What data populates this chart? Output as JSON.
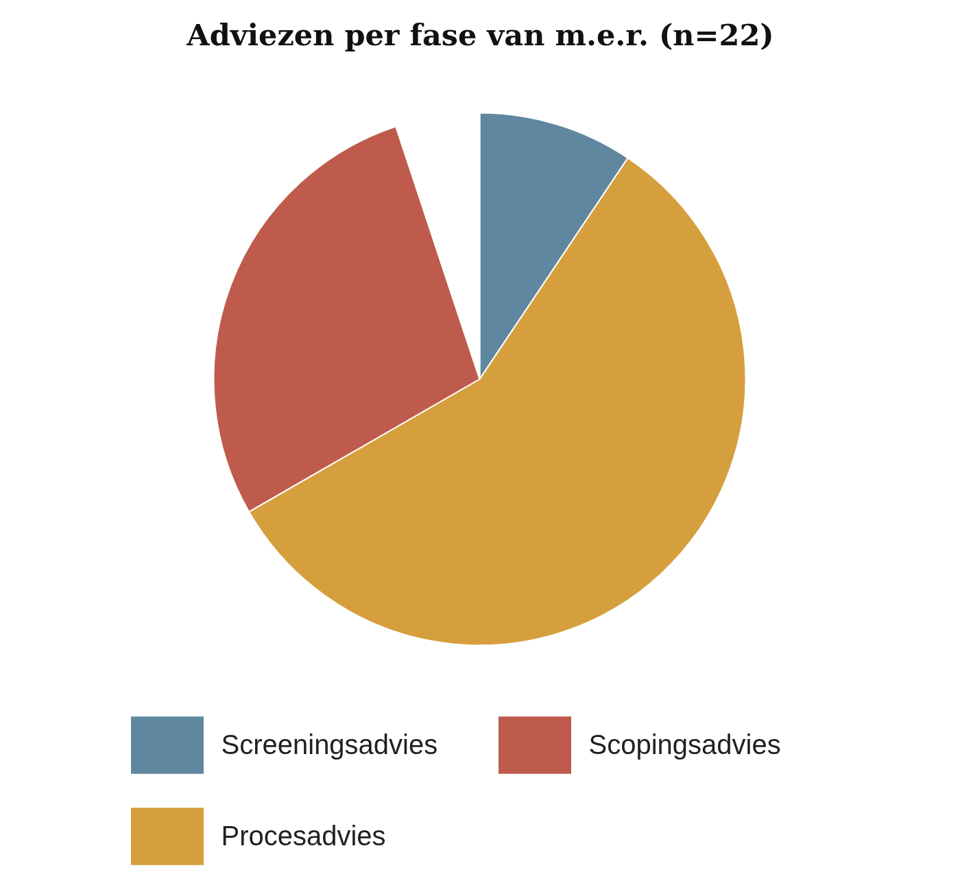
{
  "chart_data": {
    "type": "pie",
    "title": "Adviezen per fase van m.e.r. (n=22)",
    "categories": [
      "Screeningsadvies",
      "Procesadvies",
      "Scopingsadvies",
      null
    ],
    "values": [
      9.4,
      57.3,
      28.2,
      5.1
    ],
    "colors": [
      "#5f87a0",
      "#d69f3d",
      "#be5b4c",
      "#ffffff"
    ],
    "legend": "bottom"
  }
}
